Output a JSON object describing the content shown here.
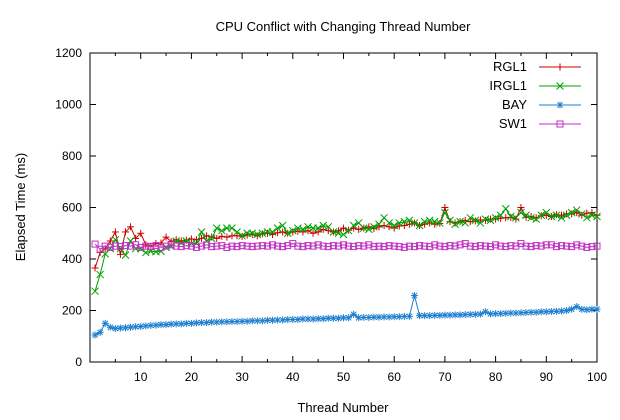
{
  "chart_data": {
    "type": "line",
    "title": "CPU Conflict with Changing Thread Number",
    "xlabel": "Thread Number",
    "ylabel": "Elapsed Time (ms)",
    "xlim": [
      0,
      100
    ],
    "ylim": [
      0,
      1200
    ],
    "xticks": [
      10,
      20,
      30,
      40,
      50,
      60,
      70,
      80,
      90,
      100
    ],
    "yticks": [
      0,
      200,
      400,
      600,
      800,
      1000,
      1200
    ],
    "grid": false,
    "legend_position": "top-right",
    "series": [
      {
        "name": "RGL1",
        "color": "#cc0000",
        "marker": "plus",
        "x": [
          1,
          2,
          3,
          4,
          5,
          6,
          7,
          8,
          9,
          10,
          11,
          12,
          13,
          14,
          15,
          16,
          17,
          18,
          19,
          20,
          21,
          22,
          23,
          24,
          25,
          26,
          27,
          28,
          29,
          30,
          31,
          32,
          33,
          34,
          35,
          36,
          37,
          38,
          39,
          40,
          41,
          42,
          43,
          44,
          45,
          46,
          47,
          48,
          49,
          50,
          51,
          52,
          53,
          54,
          55,
          56,
          57,
          58,
          59,
          60,
          61,
          62,
          63,
          64,
          65,
          66,
          67,
          68,
          69,
          70,
          71,
          72,
          73,
          74,
          75,
          76,
          77,
          78,
          79,
          80,
          81,
          82,
          83,
          84,
          85,
          86,
          87,
          88,
          89,
          90,
          91,
          92,
          93,
          94,
          95,
          96,
          97,
          98,
          99,
          100
        ],
        "values": [
          365,
          425,
          440,
          470,
          505,
          418,
          505,
          525,
          480,
          500,
          455,
          450,
          460,
          462,
          485,
          468,
          475,
          470,
          473,
          478,
          475,
          480,
          490,
          485,
          480,
          488,
          485,
          490,
          490,
          488,
          493,
          495,
          490,
          498,
          500,
          495,
          502,
          505,
          500,
          505,
          508,
          505,
          510,
          500,
          505,
          515,
          510,
          505,
          510,
          520,
          512,
          520,
          515,
          520,
          525,
          518,
          525,
          530,
          525,
          520,
          528,
          530,
          535,
          540,
          530,
          535,
          540,
          535,
          538,
          600,
          545,
          540,
          545,
          550,
          545,
          548,
          552,
          550,
          555,
          555,
          558,
          560,
          562,
          555,
          600,
          562,
          565,
          560,
          568,
          570,
          565,
          572,
          570,
          575,
          575,
          580,
          570,
          578,
          580,
          570
        ]
      },
      {
        "name": "IRGL1",
        "color": "#00a000",
        "marker": "cross",
        "x": [
          1,
          2,
          3,
          4,
          5,
          6,
          7,
          8,
          9,
          10,
          11,
          12,
          13,
          14,
          15,
          16,
          17,
          18,
          19,
          20,
          21,
          22,
          23,
          24,
          25,
          26,
          27,
          28,
          29,
          30,
          31,
          32,
          33,
          34,
          35,
          36,
          37,
          38,
          39,
          40,
          41,
          42,
          43,
          44,
          45,
          46,
          47,
          48,
          49,
          50,
          51,
          52,
          53,
          54,
          55,
          56,
          57,
          58,
          59,
          60,
          61,
          62,
          63,
          64,
          65,
          66,
          67,
          68,
          69,
          70,
          71,
          72,
          73,
          74,
          75,
          76,
          77,
          78,
          79,
          80,
          81,
          82,
          83,
          84,
          85,
          86,
          87,
          88,
          89,
          90,
          91,
          92,
          93,
          94,
          95,
          96,
          97,
          98,
          99,
          100
        ],
        "values": [
          275,
          340,
          420,
          440,
          475,
          440,
          415,
          470,
          440,
          440,
          425,
          430,
          428,
          430,
          445,
          450,
          470,
          462,
          470,
          460,
          460,
          505,
          470,
          480,
          520,
          510,
          520,
          520,
          505,
          490,
          500,
          500,
          495,
          500,
          505,
          505,
          520,
          530,
          500,
          510,
          520,
          515,
          525,
          520,
          520,
          530,
          525,
          505,
          500,
          495,
          510,
          530,
          540,
          520,
          515,
          525,
          535,
          560,
          540,
          530,
          540,
          545,
          550,
          540,
          530,
          545,
          550,
          545,
          540,
          580,
          550,
          535,
          545,
          540,
          560,
          550,
          540,
          555,
          550,
          560,
          570,
          595,
          565,
          560,
          580,
          570,
          560,
          555,
          570,
          580,
          565,
          570,
          560,
          570,
          580,
          590,
          575,
          560,
          570,
          565
        ]
      },
      {
        "name": "BAY",
        "color": "#1e7fd0",
        "marker": "star",
        "x": [
          1,
          2,
          3,
          4,
          5,
          6,
          7,
          8,
          9,
          10,
          11,
          12,
          13,
          14,
          15,
          16,
          17,
          18,
          19,
          20,
          21,
          22,
          23,
          24,
          25,
          26,
          27,
          28,
          29,
          30,
          31,
          32,
          33,
          34,
          35,
          36,
          37,
          38,
          39,
          40,
          41,
          42,
          43,
          44,
          45,
          46,
          47,
          48,
          49,
          50,
          51,
          52,
          53,
          54,
          55,
          56,
          57,
          58,
          59,
          60,
          61,
          62,
          63,
          64,
          65,
          66,
          67,
          68,
          69,
          70,
          71,
          72,
          73,
          74,
          75,
          76,
          77,
          78,
          79,
          80,
          81,
          82,
          83,
          84,
          85,
          86,
          87,
          88,
          89,
          90,
          91,
          92,
          93,
          94,
          95,
          96,
          97,
          98,
          99,
          100
        ],
        "values": [
          105,
          115,
          150,
          135,
          130,
          132,
          133,
          135,
          137,
          138,
          140,
          142,
          143,
          145,
          145,
          147,
          148,
          148,
          150,
          150,
          152,
          153,
          153,
          155,
          155,
          156,
          156,
          157,
          157,
          158,
          158,
          160,
          160,
          160,
          162,
          162,
          163,
          163,
          165,
          165,
          165,
          167,
          167,
          167,
          168,
          168,
          170,
          170,
          170,
          172,
          172,
          185,
          172,
          173,
          173,
          174,
          174,
          175,
          175,
          176,
          176,
          177,
          177,
          258,
          180,
          180,
          180,
          181,
          181,
          182,
          182,
          183,
          183,
          184,
          185,
          185,
          186,
          195,
          187,
          188,
          188,
          189,
          190,
          190,
          191,
          192,
          193,
          193,
          195,
          195,
          196,
          197,
          198,
          200,
          205,
          215,
          205,
          203,
          205,
          205
        ]
      },
      {
        "name": "SW1",
        "color": "#c030c0",
        "marker": "square",
        "x": [
          1,
          2,
          3,
          4,
          5,
          6,
          7,
          8,
          9,
          10,
          11,
          12,
          13,
          14,
          15,
          16,
          17,
          18,
          19,
          20,
          21,
          22,
          23,
          24,
          25,
          26,
          27,
          28,
          29,
          30,
          31,
          32,
          33,
          34,
          35,
          36,
          37,
          38,
          39,
          40,
          41,
          42,
          43,
          44,
          45,
          46,
          47,
          48,
          49,
          50,
          51,
          52,
          53,
          54,
          55,
          56,
          57,
          58,
          59,
          60,
          61,
          62,
          63,
          64,
          65,
          66,
          67,
          68,
          69,
          70,
          71,
          72,
          73,
          74,
          75,
          76,
          77,
          78,
          79,
          80,
          81,
          82,
          83,
          84,
          85,
          86,
          87,
          88,
          89,
          90,
          91,
          92,
          93,
          94,
          95,
          96,
          97,
          98,
          99,
          100
        ],
        "values": [
          458,
          438,
          450,
          445,
          450,
          448,
          452,
          450,
          455,
          445,
          450,
          448,
          452,
          445,
          450,
          455,
          450,
          448,
          452,
          450,
          445,
          450,
          455,
          448,
          450,
          452,
          445,
          450,
          448,
          452,
          450,
          448,
          450,
          452,
          450,
          455,
          450,
          448,
          452,
          460,
          450,
          448,
          452,
          450,
          455,
          450,
          448,
          452,
          450,
          455,
          450,
          448,
          452,
          450,
          455,
          448,
          450,
          448,
          452,
          450,
          448,
          445,
          450,
          448,
          452,
          450,
          448,
          455,
          450,
          448,
          452,
          450,
          455,
          460,
          450,
          448,
          452,
          450,
          448,
          455,
          450,
          448,
          452,
          450,
          460,
          450,
          448,
          452,
          450,
          455,
          455,
          448,
          452,
          450,
          448,
          455,
          450,
          445,
          448,
          450
        ]
      }
    ]
  }
}
